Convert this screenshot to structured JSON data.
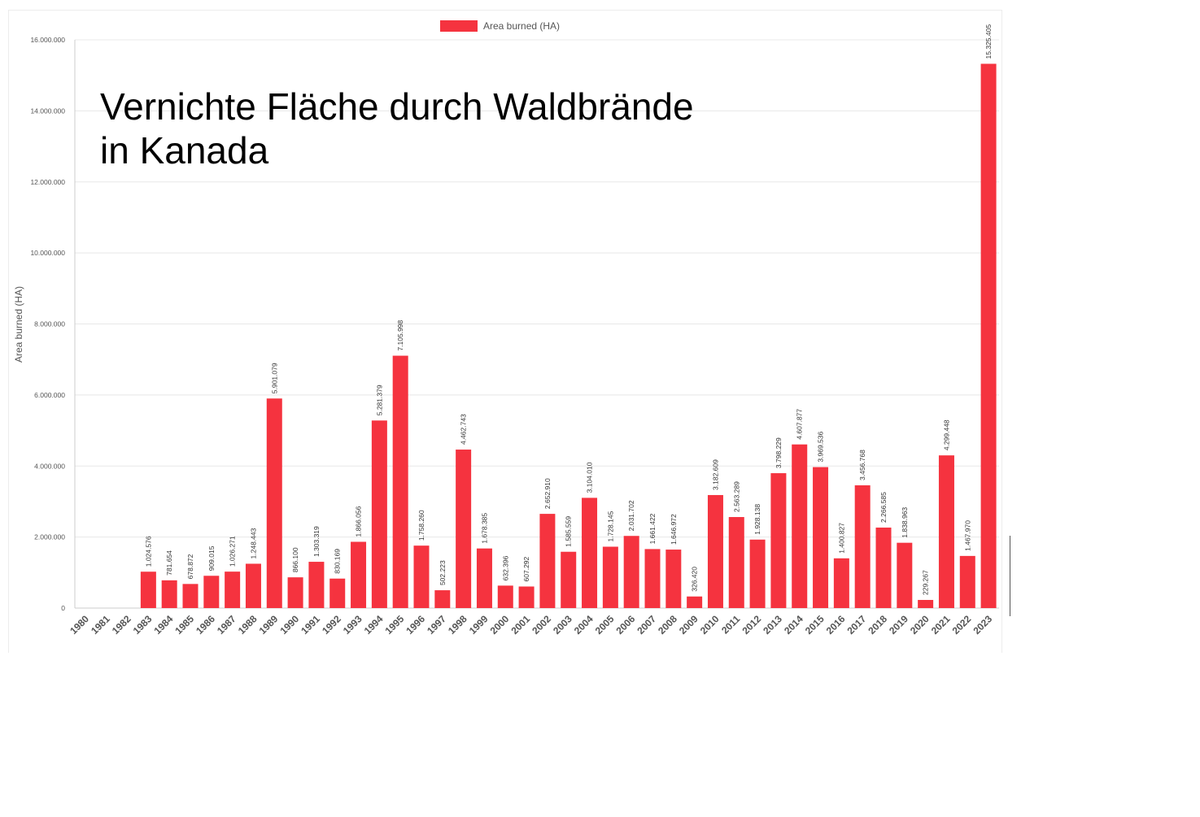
{
  "overlay_title": {
    "line1": "Vernichte Fläche durch Waldbrände",
    "line2": "in Kanada"
  },
  "colors": {
    "bar": "#f5333f",
    "grid": "#e8e8e8",
    "axis_text": "#555555",
    "label_text": "#333333"
  },
  "chart_data": {
    "type": "bar",
    "title": "",
    "xlabel": "",
    "ylabel": "Area burned (HA)",
    "ylim": [
      0,
      16000000
    ],
    "yticks": [
      {
        "value": 0,
        "label": "0"
      },
      {
        "value": 2000000,
        "label": "2.000.000"
      },
      {
        "value": 4000000,
        "label": "4.000.000"
      },
      {
        "value": 6000000,
        "label": "6.000.000"
      },
      {
        "value": 8000000,
        "label": "8.000.000"
      },
      {
        "value": 10000000,
        "label": "10.000.000"
      },
      {
        "value": 12000000,
        "label": "12.000.000"
      },
      {
        "value": 14000000,
        "label": "14.000.000"
      },
      {
        "value": 16000000,
        "label": "16.000.000"
      }
    ],
    "grid": true,
    "legend": "top-center",
    "categories": [
      "1980",
      "1981",
      "1982",
      "1983",
      "1984",
      "1985",
      "1986",
      "1987",
      "1988",
      "1989",
      "1990",
      "1991",
      "1992",
      "1993",
      "1994",
      "1995",
      "1996",
      "1997",
      "1998",
      "1999",
      "2000",
      "2001",
      "2002",
      "2003",
      "2004",
      "2005",
      "2006",
      "2007",
      "2008",
      "2009",
      "2010",
      "2011",
      "2012",
      "2013",
      "2014",
      "2015",
      "2016",
      "2017",
      "2018",
      "2019",
      "2020",
      "2021",
      "2022",
      "2023"
    ],
    "series": [
      {
        "name": "Area burned (HA)",
        "values": [
          0,
          0,
          0,
          1024576,
          781654,
          678872,
          909015,
          1026271,
          1248443,
          5901079,
          866100,
          1303319,
          830169,
          1866056,
          5281379,
          7105998,
          1758260,
          502223,
          4462743,
          1678385,
          632396,
          607292,
          2652910,
          1585559,
          3104010,
          1728145,
          2031702,
          1661422,
          1646972,
          326420,
          3182609,
          2563289,
          1928138,
          3798229,
          4607877,
          3969536,
          1400827,
          3456768,
          2266585,
          1838963,
          229267,
          4299448,
          1467970,
          15325405
        ],
        "labels": [
          "",
          "",
          "",
          "1.024.576",
          "781.654",
          "678.872",
          "909.015",
          "1.026.271",
          "1.248.443",
          "5.901.079",
          "866.100",
          "1.303.319",
          "830.169",
          "1.866.056",
          "5.281.379",
          "7.105.998",
          "1.758.260",
          "502.223",
          "4.462.743",
          "1.678.385",
          "632.396",
          "607.292",
          "2.652.910",
          "1.585.559",
          "3.104.010",
          "1.728.145",
          "2.031.702",
          "1.661.422",
          "1.646.972",
          "326.420",
          "3.182.609",
          "2.563.289",
          "1.928.138",
          "3.798.229",
          "4.607.877",
          "3.969.536",
          "1.400.827",
          "3.456.768",
          "2.266.585",
          "1.838.963",
          "229.267",
          "4.299.448",
          "1.467.970",
          "15.325.405"
        ]
      }
    ]
  }
}
